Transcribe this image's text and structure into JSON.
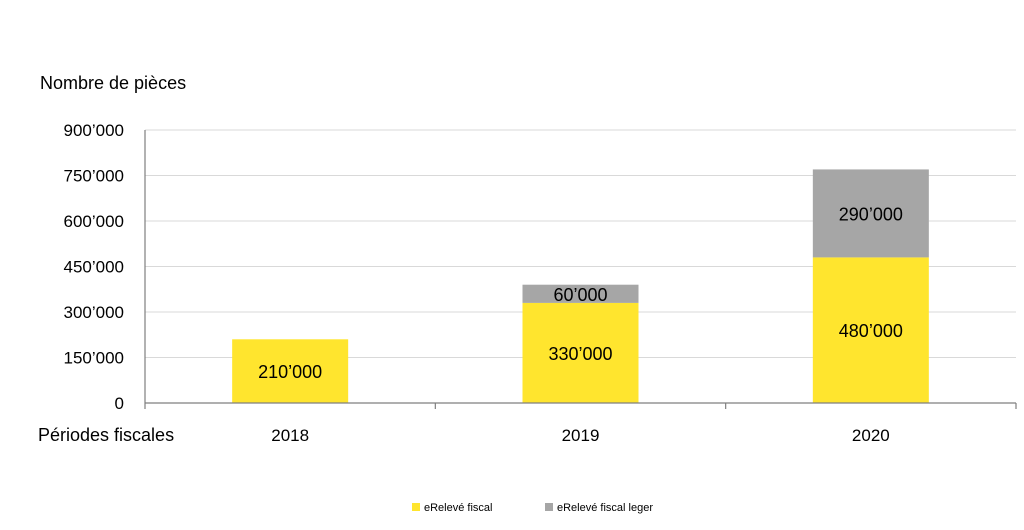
{
  "chart_data": {
    "type": "bar",
    "stacked": true,
    "ylabel": "Nombre de pièces",
    "xlabel": "Périodes fiscales",
    "categories": [
      "2018",
      "2019",
      "2020"
    ],
    "ylim": [
      0,
      900000
    ],
    "yticks": [
      0,
      150000,
      300000,
      450000,
      600000,
      750000,
      900000
    ],
    "ytick_labels": [
      "0",
      "150’000",
      "300’000",
      "450’000",
      "600’000",
      "750’000",
      "900’000"
    ],
    "grid": true,
    "legend_position": "bottom",
    "series": [
      {
        "name": "eRelevé fiscal",
        "color": "#ffe52e",
        "values": [
          210000,
          330000,
          480000
        ],
        "labels": [
          "210’000",
          "330’000",
          "480’000"
        ]
      },
      {
        "name": "eRelevé fiscal leger",
        "color": "#a6a6a6",
        "values": [
          0,
          60000,
          290000
        ],
        "labels": [
          "",
          "60’000",
          "290’000"
        ]
      }
    ]
  }
}
